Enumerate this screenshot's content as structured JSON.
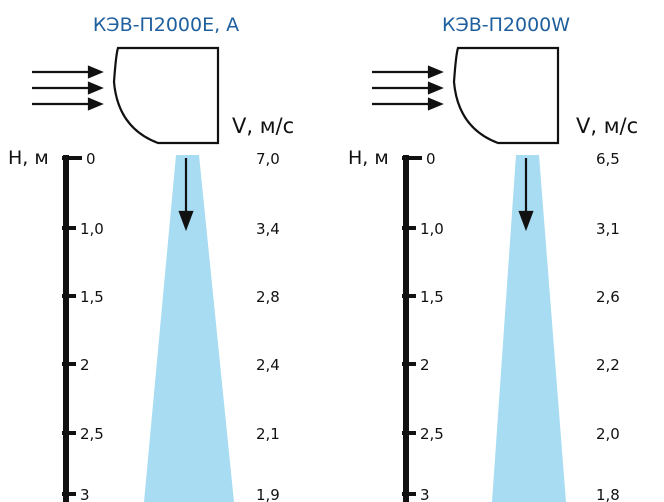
{
  "panels": [
    {
      "title": "КЭВ-П2000Е, А",
      "h_label": "H, м",
      "v_label": "V, м/с",
      "heights": [
        "0",
        "1,0",
        "1,5",
        "2",
        "2,5",
        "3"
      ],
      "speeds": [
        "7,0",
        "3,4",
        "2,8",
        "2,4",
        "2,1",
        "1,9"
      ]
    },
    {
      "title": "КЭВ-П2000W",
      "h_label": "H, м",
      "v_label": "V, м/с",
      "heights": [
        "0",
        "1,0",
        "1,5",
        "2",
        "2,5",
        "3"
      ],
      "speeds": [
        "6,5",
        "3,1",
        "2,6",
        "2,2",
        "2,0",
        "1,8"
      ]
    }
  ],
  "colors": {
    "title": "#1f5f9e",
    "stream": "#a7dcf2",
    "stroke": "#111111"
  }
}
